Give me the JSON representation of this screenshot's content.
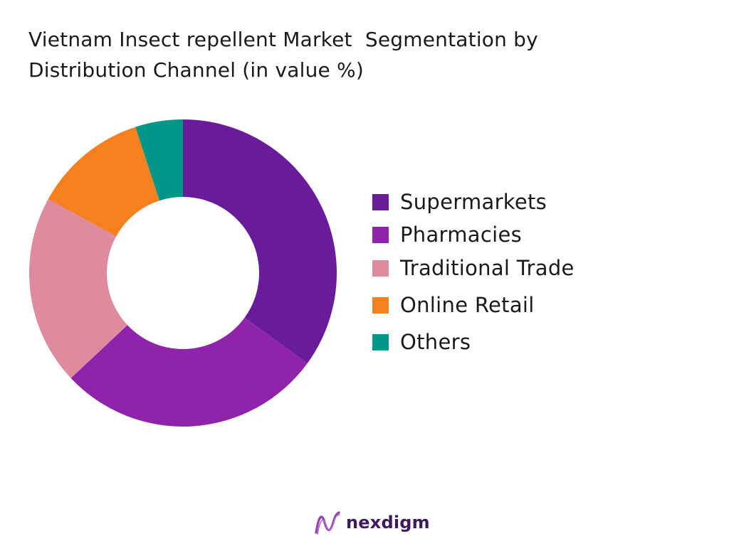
{
  "title_lines": [
    "Vietnam Insect repellent Market  Segmentation by",
    "Distribution Channel (in value %)"
  ],
  "chart_data": {
    "type": "pie",
    "donut": true,
    "title": "Vietnam Insect repellent Market  Segmentation by Distribution Channel (in value %)",
    "categories": [
      "Supermarkets",
      "Pharmacies",
      "Traditional Trade",
      "Online Retail",
      "Others"
    ],
    "values": [
      35,
      28,
      20,
      12,
      5
    ],
    "colors": [
      "#6a1b9a",
      "#8e24aa",
      "#df8a9f",
      "#f4801f",
      "#009688"
    ],
    "legend_position": "right",
    "start_angle_deg": 0,
    "direction": "clockwise"
  },
  "brand": {
    "name": "nexdigm",
    "logo_icon": "nexdigm-logo-icon",
    "logo_color": "#8e44ad"
  }
}
